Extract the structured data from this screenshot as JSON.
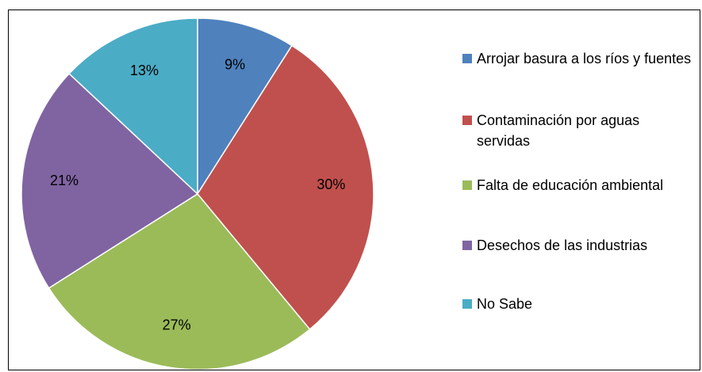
{
  "chart_data": {
    "type": "pie",
    "categories": [
      "Arrojar basura a los ríos y fuentes",
      "Contaminación por aguas servidas",
      "Falta de educación ambiental",
      "Desechos de las industrias",
      "No Sabe"
    ],
    "values": [
      9,
      30,
      27,
      21,
      13
    ],
    "value_labels": [
      "9%",
      "30%",
      "27%",
      "21%",
      "13%"
    ],
    "colors": [
      "#4f81bd",
      "#c0504d",
      "#9bbb59",
      "#8064a2",
      "#4bacc6"
    ],
    "legend": "right"
  }
}
